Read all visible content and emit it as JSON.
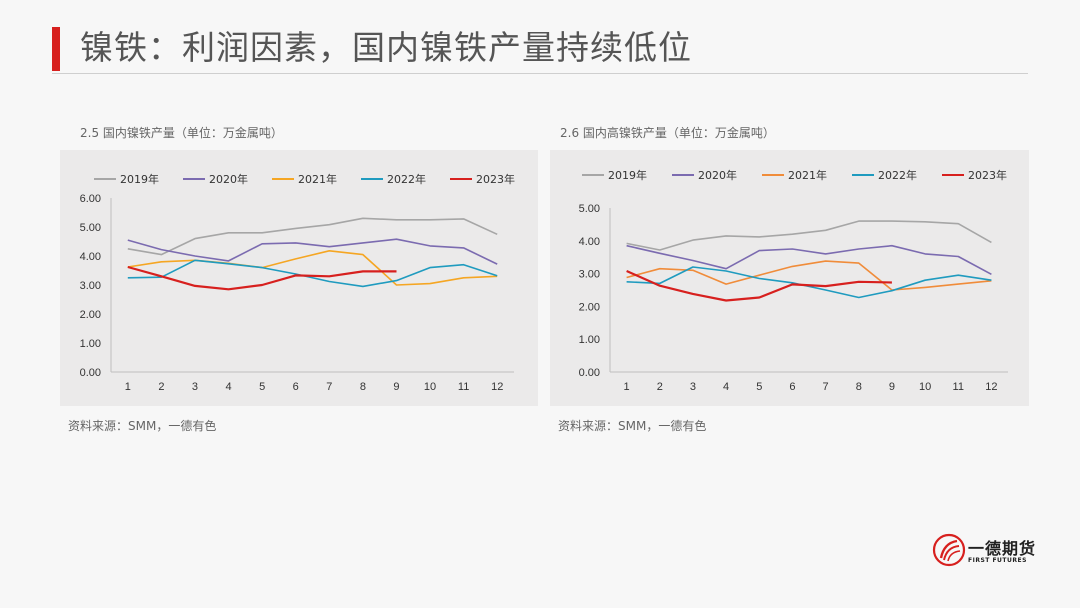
{
  "page": {
    "title": "镍铁：利润因素，国内镍铁产量持续低位"
  },
  "logo": {
    "name": "一德期货",
    "subtitle": "FIRST FUTURES"
  },
  "charts": [
    {
      "caption": "2.5 国内镍铁产量（单位：万金属吨）",
      "source": "资料来源：SMM，一德有色"
    },
    {
      "caption": "2.6 国内高镍铁产量（单位：万金属吨）",
      "source": "资料来源：SMM，一德有色"
    }
  ],
  "chart_data": [
    {
      "type": "line",
      "title": "2.5 国内镍铁产量（单位：万金属吨）",
      "categories": [
        "1",
        "2",
        "3",
        "4",
        "5",
        "6",
        "7",
        "8",
        "9",
        "10",
        "11",
        "12"
      ],
      "ylim": [
        0,
        6
      ],
      "yticks": [
        "0.00",
        "1.00",
        "2.00",
        "3.00",
        "4.00",
        "5.00",
        "6.00"
      ],
      "grid": false,
      "legend_position": "top",
      "series": [
        {
          "name": "2019年",
          "color": "#a6a6a6",
          "values": [
            4.25,
            4.05,
            4.6,
            4.8,
            4.8,
            4.95,
            5.08,
            5.3,
            5.25,
            5.25,
            5.28,
            4.75
          ]
        },
        {
          "name": "2020年",
          "color": "#7b6bb0",
          "values": [
            4.55,
            4.22,
            4.0,
            3.83,
            4.42,
            4.45,
            4.32,
            4.45,
            4.58,
            4.35,
            4.28,
            3.72
          ]
        },
        {
          "name": "2021年",
          "color": "#f5a623",
          "values": [
            3.62,
            3.8,
            3.85,
            3.75,
            3.6,
            3.9,
            4.18,
            4.05,
            3.0,
            3.05,
            3.25,
            3.3
          ]
        },
        {
          "name": "2022年",
          "color": "#1f9bbf",
          "values": [
            3.25,
            3.27,
            3.85,
            3.73,
            3.6,
            3.38,
            3.12,
            2.95,
            3.15,
            3.6,
            3.7,
            3.32
          ]
        },
        {
          "name": "2023年",
          "color": "#d7201e",
          "values": [
            3.62,
            3.3,
            2.97,
            2.85,
            3.0,
            3.33,
            3.3,
            3.47,
            3.47,
            null,
            null,
            null
          ]
        }
      ]
    },
    {
      "type": "line",
      "title": "2.6 国内高镍铁产量（单位：万金属吨）",
      "categories": [
        "1",
        "2",
        "3",
        "4",
        "5",
        "6",
        "7",
        "8",
        "9",
        "10",
        "11",
        "12"
      ],
      "ylim": [
        0,
        5
      ],
      "yticks": [
        "0.00",
        "1.00",
        "2.00",
        "3.00",
        "4.00",
        "5.00"
      ],
      "grid": false,
      "legend_position": "top",
      "series": [
        {
          "name": "2019年",
          "color": "#a6a6a6",
          "values": [
            3.92,
            3.72,
            4.02,
            4.15,
            4.12,
            4.2,
            4.32,
            4.6,
            4.6,
            4.58,
            4.52,
            3.95
          ]
        },
        {
          "name": "2020年",
          "color": "#7b6bb0",
          "values": [
            3.85,
            3.62,
            3.4,
            3.15,
            3.7,
            3.75,
            3.6,
            3.75,
            3.85,
            3.6,
            3.52,
            2.98
          ]
        },
        {
          "name": "2021年",
          "color": "#f08c3a",
          "values": [
            2.88,
            3.15,
            3.1,
            2.68,
            2.95,
            3.22,
            3.38,
            3.32,
            2.5,
            2.58,
            2.68,
            2.78
          ]
        },
        {
          "name": "2022年",
          "color": "#1f9bbf",
          "values": [
            2.75,
            2.7,
            3.2,
            3.08,
            2.85,
            2.72,
            2.5,
            2.27,
            2.48,
            2.8,
            2.95,
            2.8
          ]
        },
        {
          "name": "2023年",
          "color": "#d7201e",
          "values": [
            3.08,
            2.63,
            2.38,
            2.18,
            2.27,
            2.67,
            2.62,
            2.75,
            2.73,
            null,
            null,
            null
          ]
        }
      ]
    }
  ]
}
